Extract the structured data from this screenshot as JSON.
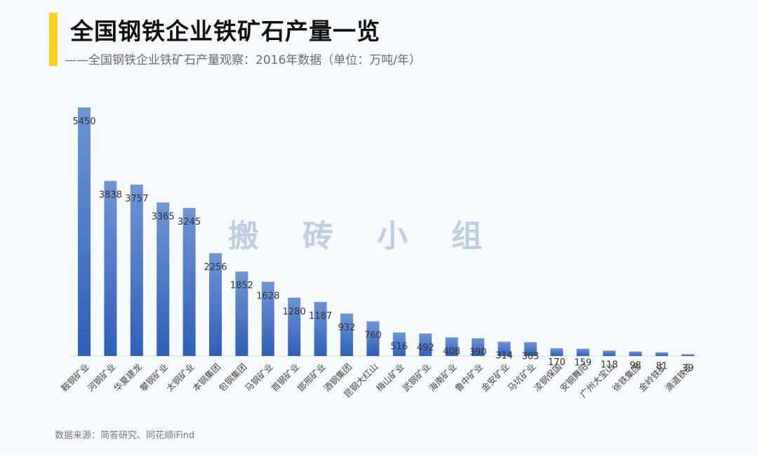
{
  "header": {
    "title": "全国钢铁企业铁矿石产量一览",
    "subtitle": "——全国钢铁企业铁矿石产量观察：2016年数据（单位：万吨/年）"
  },
  "watermark": "搬砖小组",
  "footer": {
    "source": "数据来源：简答研究、同花顺iFind"
  },
  "colors": {
    "accent": "#ffd21f",
    "bar_top": "#6f95d6",
    "bar_bottom": "#2f5fb8"
  },
  "chart_data": {
    "type": "bar",
    "title": "全国钢铁企业铁矿石产量一览",
    "xlabel": "",
    "ylabel": "",
    "ylim": [
      0,
      5500
    ],
    "grid": false,
    "legend": "none",
    "categories": [
      "鞍钢矿业",
      "河钢矿业",
      "华夏建龙",
      "攀钢矿业",
      "太钢矿业",
      "本钢集团",
      "包钢集团",
      "马钢矿业",
      "首钢矿业",
      "邯邢矿业",
      "酒钢集团",
      "昆钢大红山",
      "梅山矿业",
      "武钢矿业",
      "海南矿业",
      "鲁中矿业",
      "金安矿业",
      "马坑矿业",
      "凌钢保国",
      "安钢舞阳",
      "广州大宝山",
      "徐铁集团",
      "金岭铁矿",
      "滴道铁矿"
    ],
    "values": [
      5450,
      3838,
      3757,
      3365,
      3245,
      2256,
      1852,
      1628,
      1280,
      1187,
      932,
      760,
      516,
      492,
      408,
      390,
      314,
      303,
      170,
      159,
      118,
      98,
      81,
      39
    ]
  }
}
